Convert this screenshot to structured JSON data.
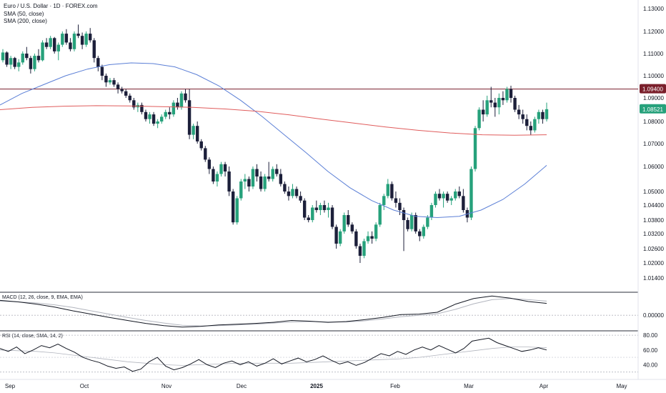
{
  "chart_data": {
    "type": "candlestick",
    "title": "Euro / U.S. Dollar · 1D · FOREX.com",
    "legend": [
      {
        "name": "SMA (50, close)",
        "color": "#5b7fd6"
      },
      {
        "name": "SMA (200, close)",
        "color": "#e05c5c"
      }
    ],
    "price_axis": {
      "ticks": [
        "1.13000",
        "1.12000",
        "1.11000",
        "1.10000",
        "1.09000",
        "1.08000",
        "1.07000",
        "1.06000",
        "1.05000",
        "1.04400",
        "1.03800",
        "1.03200",
        "1.02600",
        "1.02000",
        "1.01400"
      ]
    },
    "x_labels": [
      "Sep",
      "Oct",
      "Nov",
      "Dec",
      "2025",
      "Feb",
      "Mar",
      "Apr",
      "May"
    ],
    "horizontal_level": {
      "value": 1.094,
      "label": "1.09400",
      "color": "#7a1f2b"
    },
    "last_price": {
      "value": 1.08521,
      "label": "1.08521",
      "color": "#26a17b"
    },
    "candles": [
      [
        1.107,
        1.112,
        1.106,
        1.1105
      ],
      [
        1.1105,
        1.111,
        1.104,
        1.105
      ],
      [
        1.105,
        1.109,
        1.103,
        1.108
      ],
      [
        1.108,
        1.1085,
        1.103,
        1.104
      ],
      [
        1.104,
        1.1075,
        1.102,
        1.106
      ],
      [
        1.106,
        1.111,
        1.105,
        1.11
      ],
      [
        1.11,
        1.113,
        1.107,
        1.108
      ],
      [
        1.108,
        1.109,
        1.101,
        1.103
      ],
      [
        1.103,
        1.11,
        1.102,
        1.109
      ],
      [
        1.109,
        1.112,
        1.106,
        1.107
      ],
      [
        1.107,
        1.116,
        1.1065,
        1.115
      ],
      [
        1.115,
        1.117,
        1.112,
        1.113
      ],
      [
        1.113,
        1.118,
        1.112,
        1.117
      ],
      [
        1.117,
        1.1175,
        1.11,
        1.111
      ],
      [
        1.111,
        1.115,
        1.107,
        1.114
      ],
      [
        1.114,
        1.12,
        1.113,
        1.119
      ],
      [
        1.119,
        1.121,
        1.114,
        1.115
      ],
      [
        1.115,
        1.117,
        1.111,
        1.112
      ],
      [
        1.112,
        1.12,
        1.111,
        1.119
      ],
      [
        1.119,
        1.123,
        1.117,
        1.118
      ],
      [
        1.118,
        1.1195,
        1.112,
        1.114
      ],
      [
        1.114,
        1.12,
        1.113,
        1.119
      ],
      [
        1.119,
        1.1215,
        1.115,
        1.116
      ],
      [
        1.116,
        1.117,
        1.106,
        1.108
      ],
      [
        1.108,
        1.109,
        1.102,
        1.104
      ],
      [
        1.104,
        1.105,
        1.098,
        1.1
      ],
      [
        1.1,
        1.101,
        1.095,
        1.097
      ],
      [
        1.097,
        1.099,
        1.096,
        1.098
      ],
      [
        1.098,
        1.099,
        1.095,
        1.096
      ],
      [
        1.096,
        1.097,
        1.092,
        1.094
      ],
      [
        1.094,
        1.095,
        1.092,
        1.093
      ],
      [
        1.093,
        1.094,
        1.09,
        1.091
      ],
      [
        1.091,
        1.092,
        1.088,
        1.089
      ],
      [
        1.089,
        1.09,
        1.085,
        1.086
      ],
      [
        1.086,
        1.088,
        1.084,
        1.087
      ],
      [
        1.087,
        1.088,
        1.083,
        1.084
      ],
      [
        1.084,
        1.085,
        1.08,
        1.081
      ],
      [
        1.081,
        1.084,
        1.079,
        1.083
      ],
      [
        1.083,
        1.084,
        1.078,
        1.079
      ],
      [
        1.079,
        1.081,
        1.077,
        1.08
      ],
      [
        1.08,
        1.083,
        1.079,
        1.082
      ],
      [
        1.082,
        1.085,
        1.081,
        1.084
      ],
      [
        1.084,
        1.086,
        1.081,
        1.083
      ],
      [
        1.083,
        1.089,
        1.082,
        1.088
      ],
      [
        1.088,
        1.09,
        1.085,
        1.086
      ],
      [
        1.086,
        1.093,
        1.085,
        1.092
      ],
      [
        1.092,
        1.094,
        1.088,
        1.089
      ],
      [
        1.089,
        1.094,
        1.072,
        1.074
      ],
      [
        1.074,
        1.079,
        1.072,
        1.078
      ],
      [
        1.078,
        1.08,
        1.07,
        1.071
      ],
      [
        1.071,
        1.072,
        1.067,
        1.068
      ],
      [
        1.068,
        1.069,
        1.062,
        1.063
      ],
      [
        1.063,
        1.064,
        1.057,
        1.059
      ],
      [
        1.059,
        1.06,
        1.053,
        1.054
      ],
      [
        1.054,
        1.058,
        1.052,
        1.057
      ],
      [
        1.057,
        1.062,
        1.056,
        1.061
      ],
      [
        1.061,
        1.062,
        1.056,
        1.058
      ],
      [
        1.058,
        1.06,
        1.048,
        1.05
      ],
      [
        1.05,
        1.051,
        1.036,
        1.037
      ],
      [
        1.037,
        1.048,
        1.036,
        1.047
      ],
      [
        1.047,
        1.055,
        1.046,
        1.054
      ],
      [
        1.054,
        1.057,
        1.051,
        1.055
      ],
      [
        1.055,
        1.056,
        1.05,
        1.052
      ],
      [
        1.052,
        1.06,
        1.051,
        1.059
      ],
      [
        1.059,
        1.061,
        1.054,
        1.056
      ],
      [
        1.056,
        1.058,
        1.05,
        1.051
      ],
      [
        1.051,
        1.057,
        1.05,
        1.056
      ],
      [
        1.056,
        1.062,
        1.054,
        1.055
      ],
      [
        1.055,
        1.06,
        1.054,
        1.059
      ],
      [
        1.059,
        1.061,
        1.056,
        1.057
      ],
      [
        1.057,
        1.059,
        1.052,
        1.053
      ],
      [
        1.053,
        1.054,
        1.049,
        1.05
      ],
      [
        1.05,
        1.052,
        1.046,
        1.048
      ],
      [
        1.048,
        1.053,
        1.047,
        1.051
      ],
      [
        1.051,
        1.052,
        1.047,
        1.048
      ],
      [
        1.048,
        1.05,
        1.045,
        1.046
      ],
      [
        1.046,
        1.047,
        1.038,
        1.039
      ],
      [
        1.039,
        1.04,
        1.037,
        1.038
      ],
      [
        1.038,
        1.044,
        1.037,
        1.043
      ],
      [
        1.043,
        1.046,
        1.041,
        1.042
      ],
      [
        1.042,
        1.045,
        1.04,
        1.044
      ],
      [
        1.044,
        1.046,
        1.041,
        1.042
      ],
      [
        1.042,
        1.045,
        1.039,
        1.043
      ],
      [
        1.043,
        1.044,
        1.034,
        1.035
      ],
      [
        1.035,
        1.036,
        1.026,
        1.028
      ],
      [
        1.028,
        1.034,
        1.027,
        1.033
      ],
      [
        1.033,
        1.041,
        1.032,
        1.04
      ],
      [
        1.04,
        1.042,
        1.035,
        1.036
      ],
      [
        1.036,
        1.037,
        1.032,
        1.033
      ],
      [
        1.033,
        1.034,
        1.026,
        1.027
      ],
      [
        1.027,
        1.028,
        1.02,
        1.023
      ],
      [
        1.023,
        1.03,
        1.022,
        1.029
      ],
      [
        1.029,
        1.033,
        1.028,
        1.031
      ],
      [
        1.031,
        1.033,
        1.028,
        1.03
      ],
      [
        1.03,
        1.037,
        1.029,
        1.036
      ],
      [
        1.036,
        1.045,
        1.035,
        1.044
      ],
      [
        1.044,
        1.049,
        1.042,
        1.048
      ],
      [
        1.048,
        1.055,
        1.047,
        1.053
      ],
      [
        1.053,
        1.054,
        1.046,
        1.047
      ],
      [
        1.047,
        1.05,
        1.043,
        1.045
      ],
      [
        1.045,
        1.047,
        1.04,
        1.042
      ],
      [
        1.042,
        1.043,
        1.025,
        1.038
      ],
      [
        1.038,
        1.039,
        1.033,
        1.034
      ],
      [
        1.034,
        1.041,
        1.033,
        1.04
      ],
      [
        1.04,
        1.041,
        1.032,
        1.033
      ],
      [
        1.033,
        1.034,
        1.029,
        1.031
      ],
      [
        1.031,
        1.036,
        1.03,
        1.035
      ],
      [
        1.035,
        1.04,
        1.034,
        1.039
      ],
      [
        1.039,
        1.045,
        1.038,
        1.044
      ],
      [
        1.044,
        1.05,
        1.043,
        1.049
      ],
      [
        1.049,
        1.051,
        1.046,
        1.047
      ],
      [
        1.047,
        1.05,
        1.043,
        1.049
      ],
      [
        1.049,
        1.05,
        1.045,
        1.046
      ],
      [
        1.046,
        1.048,
        1.044,
        1.047
      ],
      [
        1.047,
        1.051,
        1.046,
        1.05
      ],
      [
        1.05,
        1.052,
        1.047,
        1.048
      ],
      [
        1.048,
        1.051,
        1.041,
        1.042
      ],
      [
        1.042,
        1.043,
        1.037,
        1.039
      ],
      [
        1.039,
        1.06,
        1.038,
        1.059
      ],
      [
        1.059,
        1.078,
        1.058,
        1.077
      ],
      [
        1.077,
        1.086,
        1.076,
        1.085
      ],
      [
        1.085,
        1.089,
        1.08,
        1.083
      ],
      [
        1.083,
        1.091,
        1.082,
        1.089
      ],
      [
        1.089,
        1.095,
        1.086,
        1.088
      ],
      [
        1.088,
        1.09,
        1.082,
        1.086
      ],
      [
        1.086,
        1.092,
        1.083,
        1.09
      ],
      [
        1.09,
        1.093,
        1.087,
        1.089
      ],
      [
        1.089,
        1.095,
        1.088,
        1.094
      ],
      [
        1.094,
        1.0955,
        1.088,
        1.09
      ],
      [
        1.09,
        1.091,
        1.084,
        1.085
      ],
      [
        1.085,
        1.087,
        1.081,
        1.083
      ],
      [
        1.083,
        1.085,
        1.079,
        1.081
      ],
      [
        1.081,
        1.083,
        1.076,
        1.078
      ],
      [
        1.078,
        1.08,
        1.074,
        1.076
      ],
      [
        1.076,
        1.082,
        1.075,
        1.081
      ],
      [
        1.081,
        1.085,
        1.079,
        1.084
      ],
      [
        1.084,
        1.085,
        1.079,
        1.081
      ],
      [
        1.081,
        1.088,
        1.08,
        1.0852
      ]
    ],
    "sma50": [
      1.087,
      1.092,
      1.096,
      1.1,
      1.103,
      1.105,
      1.1058,
      1.1055,
      1.104,
      1.1005,
      1.0955,
      1.089,
      1.082,
      1.074,
      1.066,
      1.058,
      1.0515,
      1.046,
      1.042,
      1.0395,
      1.039,
      1.0395,
      1.042,
      1.0465,
      1.053,
      1.0605
    ],
    "sma200": [
      1.085,
      1.086,
      1.0865,
      1.0867,
      1.0866,
      1.0863,
      1.086,
      1.0853,
      1.0843,
      1.0828,
      1.081,
      1.0793,
      1.0775,
      1.076,
      1.0748,
      1.074,
      1.0738,
      1.074
    ],
    "macd": {
      "pane_label": "MACD (12, 26, close, 9, EMA, EMA)",
      "tick": "0.00000",
      "macd_line": [
        0.004,
        0.0036,
        0.003,
        0.0022,
        0.0012,
        0.0003,
        -0.0006,
        -0.0014,
        -0.0022,
        -0.0028,
        -0.0032,
        -0.003,
        -0.0026,
        -0.0024,
        -0.0022,
        -0.0019,
        -0.0014,
        -0.0016,
        -0.0019,
        -0.0017,
        -0.0012,
        -0.0006,
        0.0002,
        0.0003,
        0.0008,
        0.003,
        0.0045,
        0.0052,
        0.0046,
        0.0037,
        0.0032
      ],
      "signal_line": [
        0.0038,
        0.0036,
        0.0033,
        0.0028,
        0.0021,
        0.0012,
        0.0003,
        -0.0006,
        -0.0014,
        -0.0021,
        -0.0027,
        -0.0029,
        -0.0028,
        -0.0026,
        -0.0024,
        -0.0021,
        -0.0018,
        -0.0017,
        -0.0018,
        -0.0018,
        -0.0015,
        -0.001,
        -0.0004,
        0.0,
        0.0004,
        0.0016,
        0.0031,
        0.0042,
        0.0045,
        0.0042,
        0.0038
      ]
    },
    "rsi": {
      "pane_label": "RSI (14, close, SMA, 14, 2)",
      "ticks": [
        "80.00",
        "60.00",
        "40.00"
      ],
      "values": [
        62,
        58,
        64,
        55,
        60,
        66,
        63,
        68,
        62,
        57,
        50,
        46,
        43,
        38,
        35,
        37,
        31,
        34,
        44,
        50,
        38,
        33,
        36,
        41,
        47,
        40,
        36,
        42,
        45,
        40,
        44,
        38,
        42,
        48,
        41,
        45,
        49,
        44,
        47,
        52,
        46,
        41,
        44,
        39,
        43,
        49,
        55,
        52,
        58,
        54,
        60,
        64,
        60,
        66,
        61,
        56,
        62,
        72,
        74,
        76,
        70,
        66,
        62,
        58,
        60,
        63,
        60
      ],
      "ma": [
        60,
        59,
        58,
        56,
        53,
        50,
        47,
        44,
        42,
        40,
        39,
        40,
        41,
        42,
        42,
        42,
        42,
        43,
        44,
        45,
        46,
        47,
        48,
        50,
        53,
        56,
        59,
        62,
        64,
        64,
        63
      ]
    }
  }
}
